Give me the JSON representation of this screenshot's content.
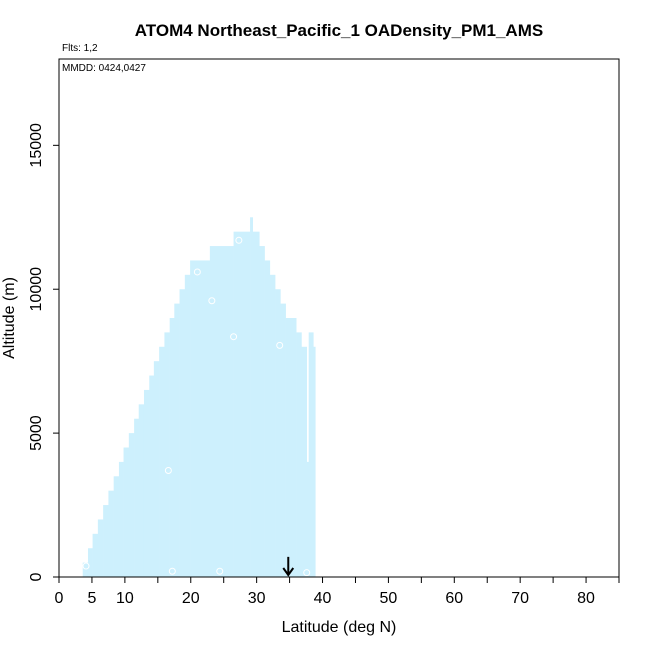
{
  "chart_data": {
    "type": "area",
    "title": "ATOM4 Northeast_Pacific_1 OADensity_PM1_AMS",
    "flights_label": "Flts: 1,2",
    "dates_label": "MMDD: 0424,0427",
    "xlabel": "Latitude (deg N)",
    "ylabel": "Altitude (m)",
    "xlim": [
      0,
      85
    ],
    "ylim": [
      0,
      18000
    ],
    "x_ticks": [
      {
        "value": 0,
        "label": "0"
      },
      {
        "value": 5,
        "label": "5"
      },
      {
        "value": 10,
        "label": "10"
      },
      {
        "value": 20,
        "label": "20"
      },
      {
        "value": 30,
        "label": "30"
      },
      {
        "value": 40,
        "label": "40"
      },
      {
        "value": 50,
        "label": "50"
      },
      {
        "value": 60,
        "label": "60"
      },
      {
        "value": 70,
        "label": "70"
      },
      {
        "value": 80,
        "label": "80"
      }
    ],
    "x_minor_ticks": [
      15,
      25,
      35,
      45,
      55,
      65,
      75,
      85
    ],
    "y_ticks": [
      {
        "value": 0,
        "label": "0"
      },
      {
        "value": 5000,
        "label": "5000"
      },
      {
        "value": 10000,
        "label": "10000"
      },
      {
        "value": 15000,
        "label": "15000"
      }
    ],
    "fill_color": "#cdf0fd",
    "marker_color": "#ffffff",
    "coverage_columns": [
      {
        "lat0": 3.6,
        "lat1": 4.4,
        "top": 500
      },
      {
        "lat0": 4.4,
        "lat1": 5.1,
        "top": 1000
      },
      {
        "lat0": 5.1,
        "lat1": 5.9,
        "top": 1500
      },
      {
        "lat0": 5.9,
        "lat1": 6.7,
        "top": 2000
      },
      {
        "lat0": 6.7,
        "lat1": 7.5,
        "top": 2500
      },
      {
        "lat0": 7.5,
        "lat1": 8.3,
        "top": 3000
      },
      {
        "lat0": 8.3,
        "lat1": 9.1,
        "top": 3500
      },
      {
        "lat0": 9.1,
        "lat1": 9.8,
        "top": 4000
      },
      {
        "lat0": 9.8,
        "lat1": 10.6,
        "top": 4500
      },
      {
        "lat0": 10.6,
        "lat1": 11.4,
        "top": 5000
      },
      {
        "lat0": 11.4,
        "lat1": 12.1,
        "top": 5500
      },
      {
        "lat0": 12.1,
        "lat1": 12.9,
        "top": 6000
      },
      {
        "lat0": 12.9,
        "lat1": 13.7,
        "top": 6500
      },
      {
        "lat0": 13.7,
        "lat1": 14.4,
        "top": 7000
      },
      {
        "lat0": 14.4,
        "lat1": 15.2,
        "top": 7500
      },
      {
        "lat0": 15.2,
        "lat1": 16.0,
        "top": 8000
      },
      {
        "lat0": 16.0,
        "lat1": 16.8,
        "top": 8500
      },
      {
        "lat0": 16.8,
        "lat1": 17.5,
        "top": 9000
      },
      {
        "lat0": 17.5,
        "lat1": 18.3,
        "top": 9500
      },
      {
        "lat0": 18.3,
        "lat1": 19.1,
        "top": 10000
      },
      {
        "lat0": 19.1,
        "lat1": 19.9,
        "top": 10500
      },
      {
        "lat0": 19.9,
        "lat1": 22.9,
        "top": 11000
      },
      {
        "lat0": 22.9,
        "lat1": 26.5,
        "top": 11500
      },
      {
        "lat0": 26.5,
        "lat1": 29.0,
        "top": 12000
      },
      {
        "lat0": 29.0,
        "lat1": 29.4,
        "top": 12500
      },
      {
        "lat0": 29.4,
        "lat1": 30.4,
        "top": 12000
      },
      {
        "lat0": 30.4,
        "lat1": 31.2,
        "top": 11500
      },
      {
        "lat0": 31.2,
        "lat1": 32.0,
        "top": 11000
      },
      {
        "lat0": 32.0,
        "lat1": 32.8,
        "top": 10500
      },
      {
        "lat0": 32.8,
        "lat1": 33.6,
        "top": 10000
      },
      {
        "lat0": 33.6,
        "lat1": 34.4,
        "top": 9500
      },
      {
        "lat0": 34.4,
        "lat1": 35.2,
        "top": 9000
      },
      {
        "lat0": 35.2,
        "lat1": 36.0,
        "top": 9000
      },
      {
        "lat0": 36.0,
        "lat1": 36.8,
        "top": 8500
      },
      {
        "lat0": 36.8,
        "lat1": 37.6,
        "top": 8000
      },
      {
        "lat0": 37.6,
        "lat1": 37.9,
        "top": 4000
      },
      {
        "lat0": 37.9,
        "lat1": 38.6,
        "top": 8500
      },
      {
        "lat0": 38.6,
        "lat1": 38.9,
        "top": 8000
      }
    ],
    "markers": [
      {
        "lat": 4.1,
        "alt": 380
      },
      {
        "lat": 16.6,
        "alt": 3700
      },
      {
        "lat": 17.2,
        "alt": 200
      },
      {
        "lat": 21.0,
        "alt": 10600
      },
      {
        "lat": 23.2,
        "alt": 9600
      },
      {
        "lat": 24.4,
        "alt": 200
      },
      {
        "lat": 26.5,
        "alt": 8350
      },
      {
        "lat": 27.3,
        "alt": 11700
      },
      {
        "lat": 33.5,
        "alt": 8050
      },
      {
        "lat": 37.6,
        "alt": 150
      }
    ],
    "arrow": {
      "lat": 34.8,
      "alt_top": 700,
      "alt_bottom": 0
    }
  }
}
